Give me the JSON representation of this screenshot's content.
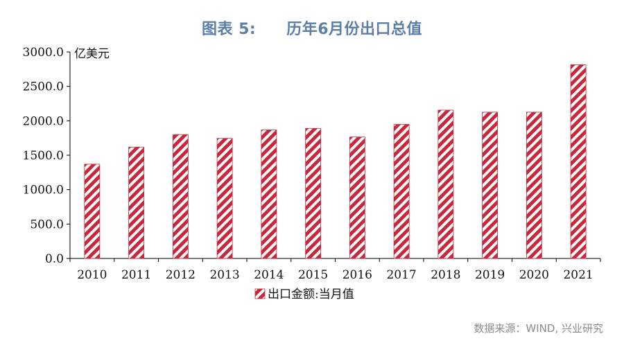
{
  "figure": {
    "number_label": "图表 5:",
    "title": "历年6月份出口总值",
    "source": "数据来源：WIND, 兴业研究"
  },
  "colors": {
    "bar_stripe": "#c8283c",
    "bar_background": "#ffffff",
    "title": "#5b7fa6",
    "axis": "#000000"
  },
  "chart_data": {
    "type": "bar",
    "categories": [
      "2010",
      "2011",
      "2012",
      "2013",
      "2014",
      "2015",
      "2016",
      "2017",
      "2018",
      "2019",
      "2020",
      "2021"
    ],
    "series": [
      {
        "name": "出口金额:当月值",
        "values": [
          1370,
          1618,
          1800,
          1745,
          1868,
          1890,
          1765,
          1948,
          2155,
          2125,
          2125,
          2815
        ]
      }
    ],
    "yunit": "亿美元",
    "ylim": [
      0,
      3000
    ],
    "yticks": [
      0,
      500,
      1000,
      1500,
      2000,
      2500,
      3000
    ],
    "ytick_labels": [
      "0.0",
      "500.0",
      "1000.0",
      "1500.0",
      "2000.0",
      "2500.0",
      "3000.0"
    ],
    "grid": false,
    "legend_position": "bottom-center",
    "pattern": "diagonal-stripes"
  }
}
